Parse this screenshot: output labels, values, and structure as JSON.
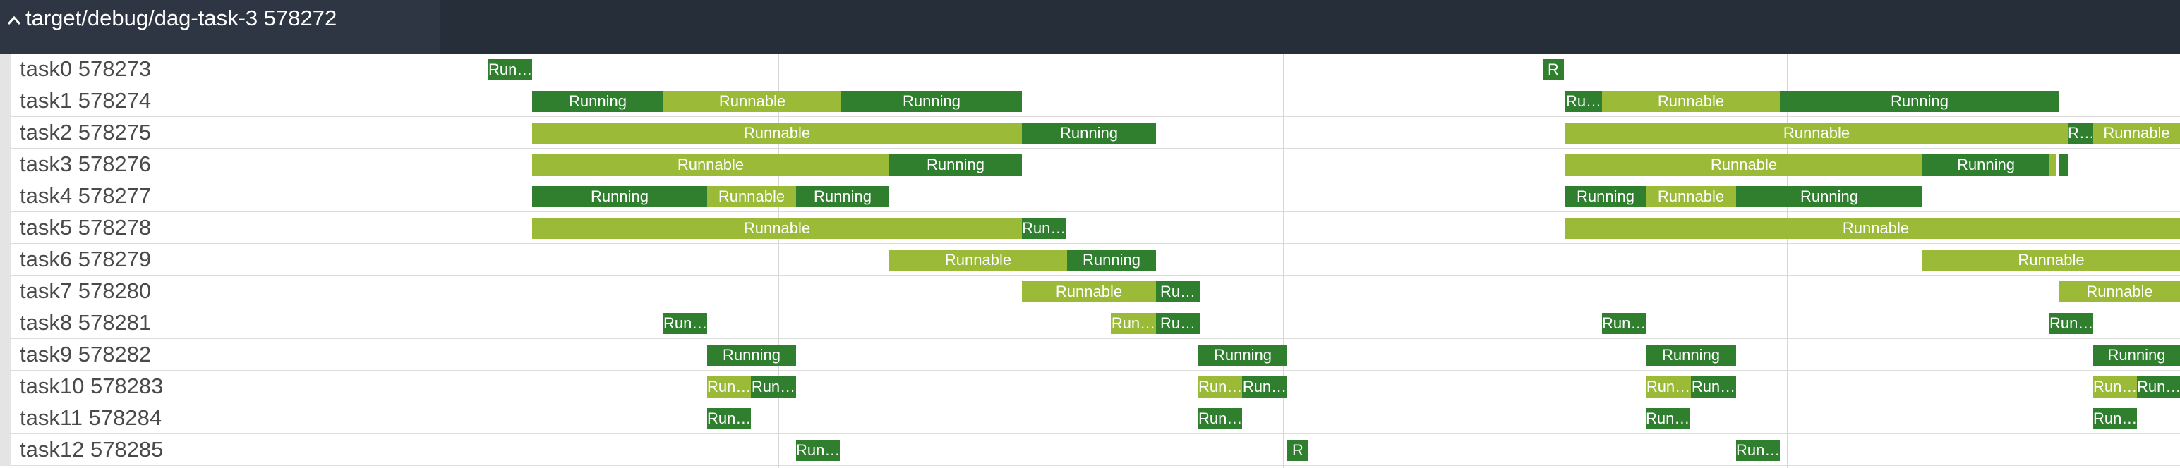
{
  "header": {
    "title": "target/debug/dag-task-3 578272",
    "collapse_icon": "chevron-up-icon"
  },
  "colors": {
    "running": "#2f7f2f",
    "runnable": "#9aba38",
    "header_bg": "#262e3a"
  },
  "rows": [
    {
      "label": "task0 578273",
      "slices": [
        {
          "state": "running",
          "text": "Run…"
        },
        {
          "state": "running",
          "text": "R"
        }
      ]
    },
    {
      "label": "task1 578274",
      "slices": [
        {
          "state": "running",
          "text": "Running"
        },
        {
          "state": "runnable",
          "text": "Runnable"
        },
        {
          "state": "running",
          "text": "Running"
        },
        {
          "state": "running",
          "text": "Ru…"
        },
        {
          "state": "runnable",
          "text": "Runnable"
        },
        {
          "state": "running",
          "text": "Running"
        }
      ]
    },
    {
      "label": "task2 578275",
      "slices": [
        {
          "state": "runnable",
          "text": "Runnable"
        },
        {
          "state": "running",
          "text": "Running"
        },
        {
          "state": "runnable",
          "text": "Runnable"
        },
        {
          "state": "running",
          "text": "R…"
        },
        {
          "state": "runnable",
          "text": "Runnable"
        }
      ]
    },
    {
      "label": "task3 578276",
      "slices": [
        {
          "state": "runnable",
          "text": "Runnable"
        },
        {
          "state": "running",
          "text": "Running"
        },
        {
          "state": "runnable",
          "text": "Runnable"
        },
        {
          "state": "running",
          "text": "Running"
        },
        {
          "state": "runnable",
          "text": ""
        },
        {
          "state": "running",
          "text": ""
        }
      ]
    },
    {
      "label": "task4 578277",
      "slices": [
        {
          "state": "running",
          "text": "Running"
        },
        {
          "state": "runnable",
          "text": "Runnable"
        },
        {
          "state": "running",
          "text": "Running"
        },
        {
          "state": "running",
          "text": "Running"
        },
        {
          "state": "runnable",
          "text": "Runnable"
        },
        {
          "state": "running",
          "text": "Running"
        }
      ]
    },
    {
      "label": "task5 578278",
      "slices": [
        {
          "state": "runnable",
          "text": "Runnable"
        },
        {
          "state": "running",
          "text": "Run…"
        },
        {
          "state": "runnable",
          "text": "Runnable"
        }
      ]
    },
    {
      "label": "task6 578279",
      "slices": [
        {
          "state": "runnable",
          "text": "Runnable"
        },
        {
          "state": "running",
          "text": "Running"
        },
        {
          "state": "runnable",
          "text": "Runnable"
        }
      ]
    },
    {
      "label": "task7 578280",
      "slices": [
        {
          "state": "runnable",
          "text": "Runnable"
        },
        {
          "state": "running",
          "text": "Ru…"
        },
        {
          "state": "runnable",
          "text": "Runnable"
        }
      ]
    },
    {
      "label": "task8 578281",
      "slices": [
        {
          "state": "running",
          "text": "Run…"
        },
        {
          "state": "runnable",
          "text": "Run…"
        },
        {
          "state": "running",
          "text": "Ru…"
        },
        {
          "state": "running",
          "text": "Run…"
        },
        {
          "state": "running",
          "text": "Run…"
        }
      ]
    },
    {
      "label": "task9 578282",
      "slices": [
        {
          "state": "running",
          "text": "Running"
        },
        {
          "state": "running",
          "text": "Running"
        },
        {
          "state": "running",
          "text": "Running"
        },
        {
          "state": "running",
          "text": "Running"
        }
      ]
    },
    {
      "label": "task10 578283",
      "slices": [
        {
          "state": "runnable",
          "text": "Run…"
        },
        {
          "state": "running",
          "text": "Run…"
        },
        {
          "state": "runnable",
          "text": "Run…"
        },
        {
          "state": "running",
          "text": "Run…"
        },
        {
          "state": "runnable",
          "text": "Run…"
        },
        {
          "state": "running",
          "text": "Run…"
        },
        {
          "state": "runnable",
          "text": "Run…"
        },
        {
          "state": "running",
          "text": "Run…"
        }
      ]
    },
    {
      "label": "task11 578284",
      "slices": [
        {
          "state": "running",
          "text": "Run…"
        },
        {
          "state": "running",
          "text": "Run…"
        },
        {
          "state": "running",
          "text": "Run…"
        },
        {
          "state": "running",
          "text": "Run…"
        }
      ]
    },
    {
      "label": "task12 578285",
      "slices": [
        {
          "state": "running",
          "text": "Run…"
        },
        {
          "state": "running",
          "text": "R"
        },
        {
          "state": "running",
          "text": "Run…"
        }
      ]
    }
  ]
}
